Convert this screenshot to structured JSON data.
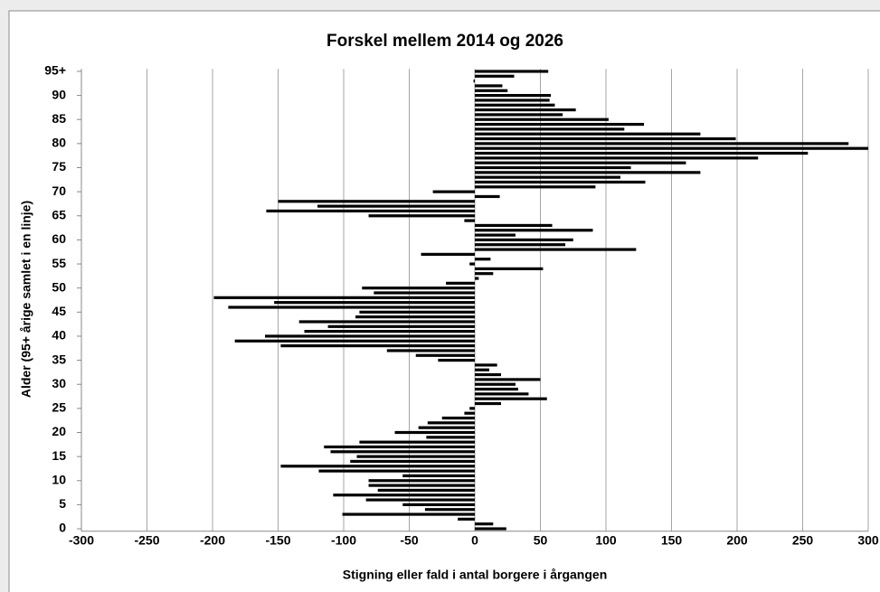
{
  "chart_data": {
    "type": "barh",
    "title": "Forskel mellem 2014 og 2026",
    "x_label": "Stigning eller fald i antal borgere i årgangen",
    "y_label": "Alder (95+ årige samlet i en linje)",
    "categories": [
      "0",
      null,
      null,
      null,
      null,
      "5",
      null,
      null,
      null,
      null,
      "10",
      null,
      null,
      null,
      null,
      "15",
      null,
      null,
      null,
      null,
      "20",
      null,
      null,
      null,
      null,
      "25",
      null,
      null,
      null,
      null,
      "30",
      null,
      null,
      null,
      null,
      "35",
      null,
      null,
      null,
      null,
      "40",
      null,
      null,
      null,
      null,
      "45",
      null,
      null,
      null,
      null,
      "50",
      null,
      null,
      null,
      null,
      "55",
      null,
      null,
      null,
      null,
      "60",
      null,
      null,
      null,
      null,
      "65",
      null,
      null,
      null,
      null,
      "70",
      null,
      null,
      null,
      null,
      "75",
      null,
      null,
      null,
      null,
      "80",
      null,
      null,
      null,
      null,
      "85",
      null,
      null,
      null,
      null,
      "90",
      null,
      null,
      null,
      null,
      "95+"
    ],
    "values": [
      24,
      14,
      -13,
      -101,
      -38,
      -55,
      -83,
      -108,
      -74,
      -81,
      -81,
      -55,
      -119,
      -148,
      -95,
      -90,
      -110,
      -115,
      -88,
      -37,
      -61,
      -43,
      -36,
      -25,
      -8,
      -4,
      20,
      55,
      41,
      33,
      31,
      50,
      20,
      11,
      17,
      -28,
      -45,
      -67,
      -148,
      -183,
      -160,
      -130,
      -112,
      -134,
      -91,
      -88,
      -188,
      -153,
      -199,
      -77,
      -86,
      -22,
      3,
      14,
      52,
      -4,
      12,
      -41,
      123,
      69,
      75,
      31,
      90,
      59,
      -8,
      -81,
      -159,
      -120,
      -150,
      19,
      -32,
      92,
      130,
      111,
      172,
      119,
      161,
      216,
      254,
      300,
      285,
      199,
      172,
      114,
      129,
      102,
      67,
      77,
      61,
      57,
      58,
      25,
      21,
      -1,
      30,
      56
    ],
    "color": "#000000",
    "xlim": [
      -300,
      300
    ],
    "xticks": [
      -300,
      -250,
      -200,
      -150,
      -100,
      -50,
      0,
      50,
      100,
      150,
      200,
      250,
      300
    ],
    "grid": true
  }
}
